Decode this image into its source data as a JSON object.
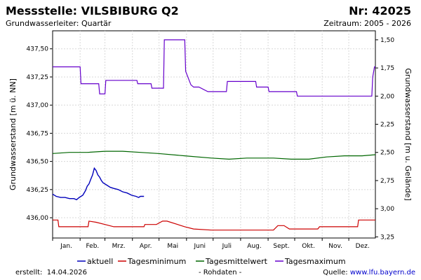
{
  "header": {
    "title": "Messstelle: VILSBIBURG Q2",
    "number": "Nr: 42025",
    "aquifer": "Grundwasserleiter: Quartär",
    "period": "Zeitraum: 2005 - 2026"
  },
  "footer": {
    "created_label": "erstellt:",
    "created_date": "14.04.2026",
    "raw_note": "- Rohdaten -",
    "source_label": "Quelle:",
    "source_link": "www.lfu.bayern.de"
  },
  "chart_data": {
    "type": "line",
    "ylabel": "Grundwasserstand [m ü. NN]",
    "y2label": "Grundwasserstand [m u. Gelände]",
    "ylim": [
      435.82,
      437.66
    ],
    "y_ticks": [
      "436,00",
      "436,25",
      "436,50",
      "436,75",
      "437,00",
      "437,25",
      "437,50"
    ],
    "y2_ticks": [
      "1,50",
      "1,75",
      "2,00",
      "2,25",
      "2,50",
      "2,75",
      "3,00",
      "3,25"
    ],
    "y2_tick_values": [
      437.58,
      437.33,
      437.08,
      436.83,
      436.58,
      436.33,
      436.08,
      435.83
    ],
    "x_unit": "day of year",
    "xlim": [
      1,
      365
    ],
    "months": [
      "Jan.",
      "Feb.",
      "Mrz.",
      "Apr.",
      "Mai",
      "Juni",
      "Juli",
      "Aug.",
      "Sept.",
      "Okt.",
      "Nov.",
      "Dez."
    ],
    "month_starts": [
      1,
      32,
      60,
      91,
      121,
      152,
      182,
      213,
      244,
      274,
      305,
      335
    ],
    "grid": true,
    "legend_position": "bottom",
    "series": [
      {
        "name": "aktuell",
        "color": "#0000bb",
        "x": [
          1,
          5,
          10,
          15,
          20,
          25,
          28,
          31,
          35,
          38,
          40,
          42,
          44,
          46,
          48,
          50,
          52,
          54,
          56,
          58,
          62,
          66,
          70,
          75,
          80,
          85,
          90,
          95,
          98,
          100,
          104
        ],
        "y": [
          436.21,
          436.19,
          436.18,
          436.18,
          436.17,
          436.17,
          436.16,
          436.18,
          436.2,
          436.24,
          436.28,
          436.3,
          436.34,
          436.38,
          436.44,
          436.42,
          436.38,
          436.36,
          436.33,
          436.31,
          436.29,
          436.27,
          436.26,
          436.25,
          436.23,
          436.22,
          436.2,
          436.19,
          436.18,
          436.19,
          436.19
        ]
      },
      {
        "name": "Tagesminimum",
        "color": "#cc0000",
        "x": [
          1,
          7,
          8,
          41,
          42,
          50,
          60,
          70,
          104,
          105,
          118,
          125,
          130,
          150,
          160,
          180,
          200,
          214,
          250,
          255,
          262,
          268,
          275,
          300,
          302,
          345,
          346,
          365
        ],
        "y": [
          435.98,
          435.98,
          435.92,
          435.92,
          435.97,
          435.96,
          435.94,
          435.92,
          435.92,
          435.94,
          435.94,
          435.97,
          435.97,
          435.92,
          435.9,
          435.89,
          435.89,
          435.89,
          435.89,
          435.93,
          435.93,
          435.9,
          435.9,
          435.9,
          435.92,
          435.92,
          435.98,
          435.98
        ]
      },
      {
        "name": "Tagesmittelwert",
        "color": "#006600",
        "x": [
          1,
          20,
          40,
          60,
          80,
          100,
          120,
          150,
          180,
          200,
          220,
          250,
          270,
          290,
          310,
          330,
          350,
          365
        ],
        "y": [
          436.57,
          436.58,
          436.58,
          436.59,
          436.59,
          436.58,
          436.57,
          436.55,
          436.53,
          436.52,
          436.53,
          436.53,
          436.52,
          436.52,
          436.54,
          436.55,
          436.55,
          436.56
        ]
      },
      {
        "name": "Tagesmaximum",
        "color": "#6600cc",
        "x": [
          1,
          32,
          33,
          53,
          54,
          60,
          61,
          96,
          97,
          112,
          113,
          126,
          127,
          150,
          151,
          155,
          157,
          160,
          166,
          176,
          177,
          197,
          198,
          230,
          231,
          244,
          245,
          276,
          277,
          296,
          297,
          324,
          325,
          361,
          362,
          364,
          365
        ],
        "y": [
          437.34,
          437.34,
          437.19,
          437.19,
          437.1,
          437.1,
          437.22,
          437.22,
          437.19,
          437.19,
          437.15,
          437.15,
          437.58,
          437.58,
          437.3,
          437.22,
          437.18,
          437.16,
          437.16,
          437.12,
          437.12,
          437.12,
          437.21,
          437.21,
          437.16,
          437.16,
          437.12,
          437.12,
          437.08,
          437.08,
          437.08,
          437.08,
          437.08,
          437.08,
          437.25,
          437.34,
          437.34
        ]
      }
    ]
  }
}
